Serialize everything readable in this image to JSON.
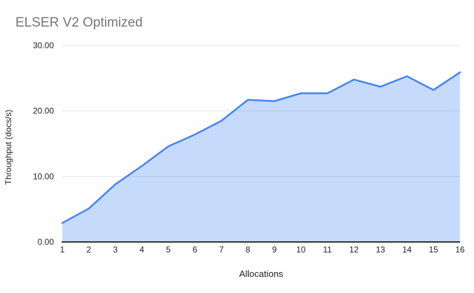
{
  "chart_data": {
    "type": "area",
    "title": "ELSER V2 Optimized",
    "xlabel": "Allocations",
    "ylabel": "Throughput (docs/s)",
    "categories": [
      "1",
      "2",
      "3",
      "4",
      "5",
      "6",
      "7",
      "8",
      "9",
      "10",
      "11",
      "12",
      "13",
      "14",
      "15",
      "16"
    ],
    "values": [
      2.9,
      5.1,
      8.8,
      11.6,
      14.6,
      16.4,
      18.5,
      21.7,
      21.5,
      22.7,
      22.7,
      24.8,
      23.7,
      25.3,
      23.2,
      25.9
    ],
    "ylim": [
      0,
      30
    ],
    "y_ticks": [
      0,
      10,
      20,
      30
    ],
    "y_tick_labels": [
      "0.00",
      "10.00",
      "20.00",
      "30.00"
    ],
    "grid": "horizontal",
    "legend": "none",
    "colors": {
      "series": "#4285f4",
      "fill_opacity": "0.3",
      "gridline": "#e6e6e6",
      "axis": "#333333",
      "tick_text": "#222222",
      "title_text": "#757575",
      "background": "#ffffff"
    }
  }
}
